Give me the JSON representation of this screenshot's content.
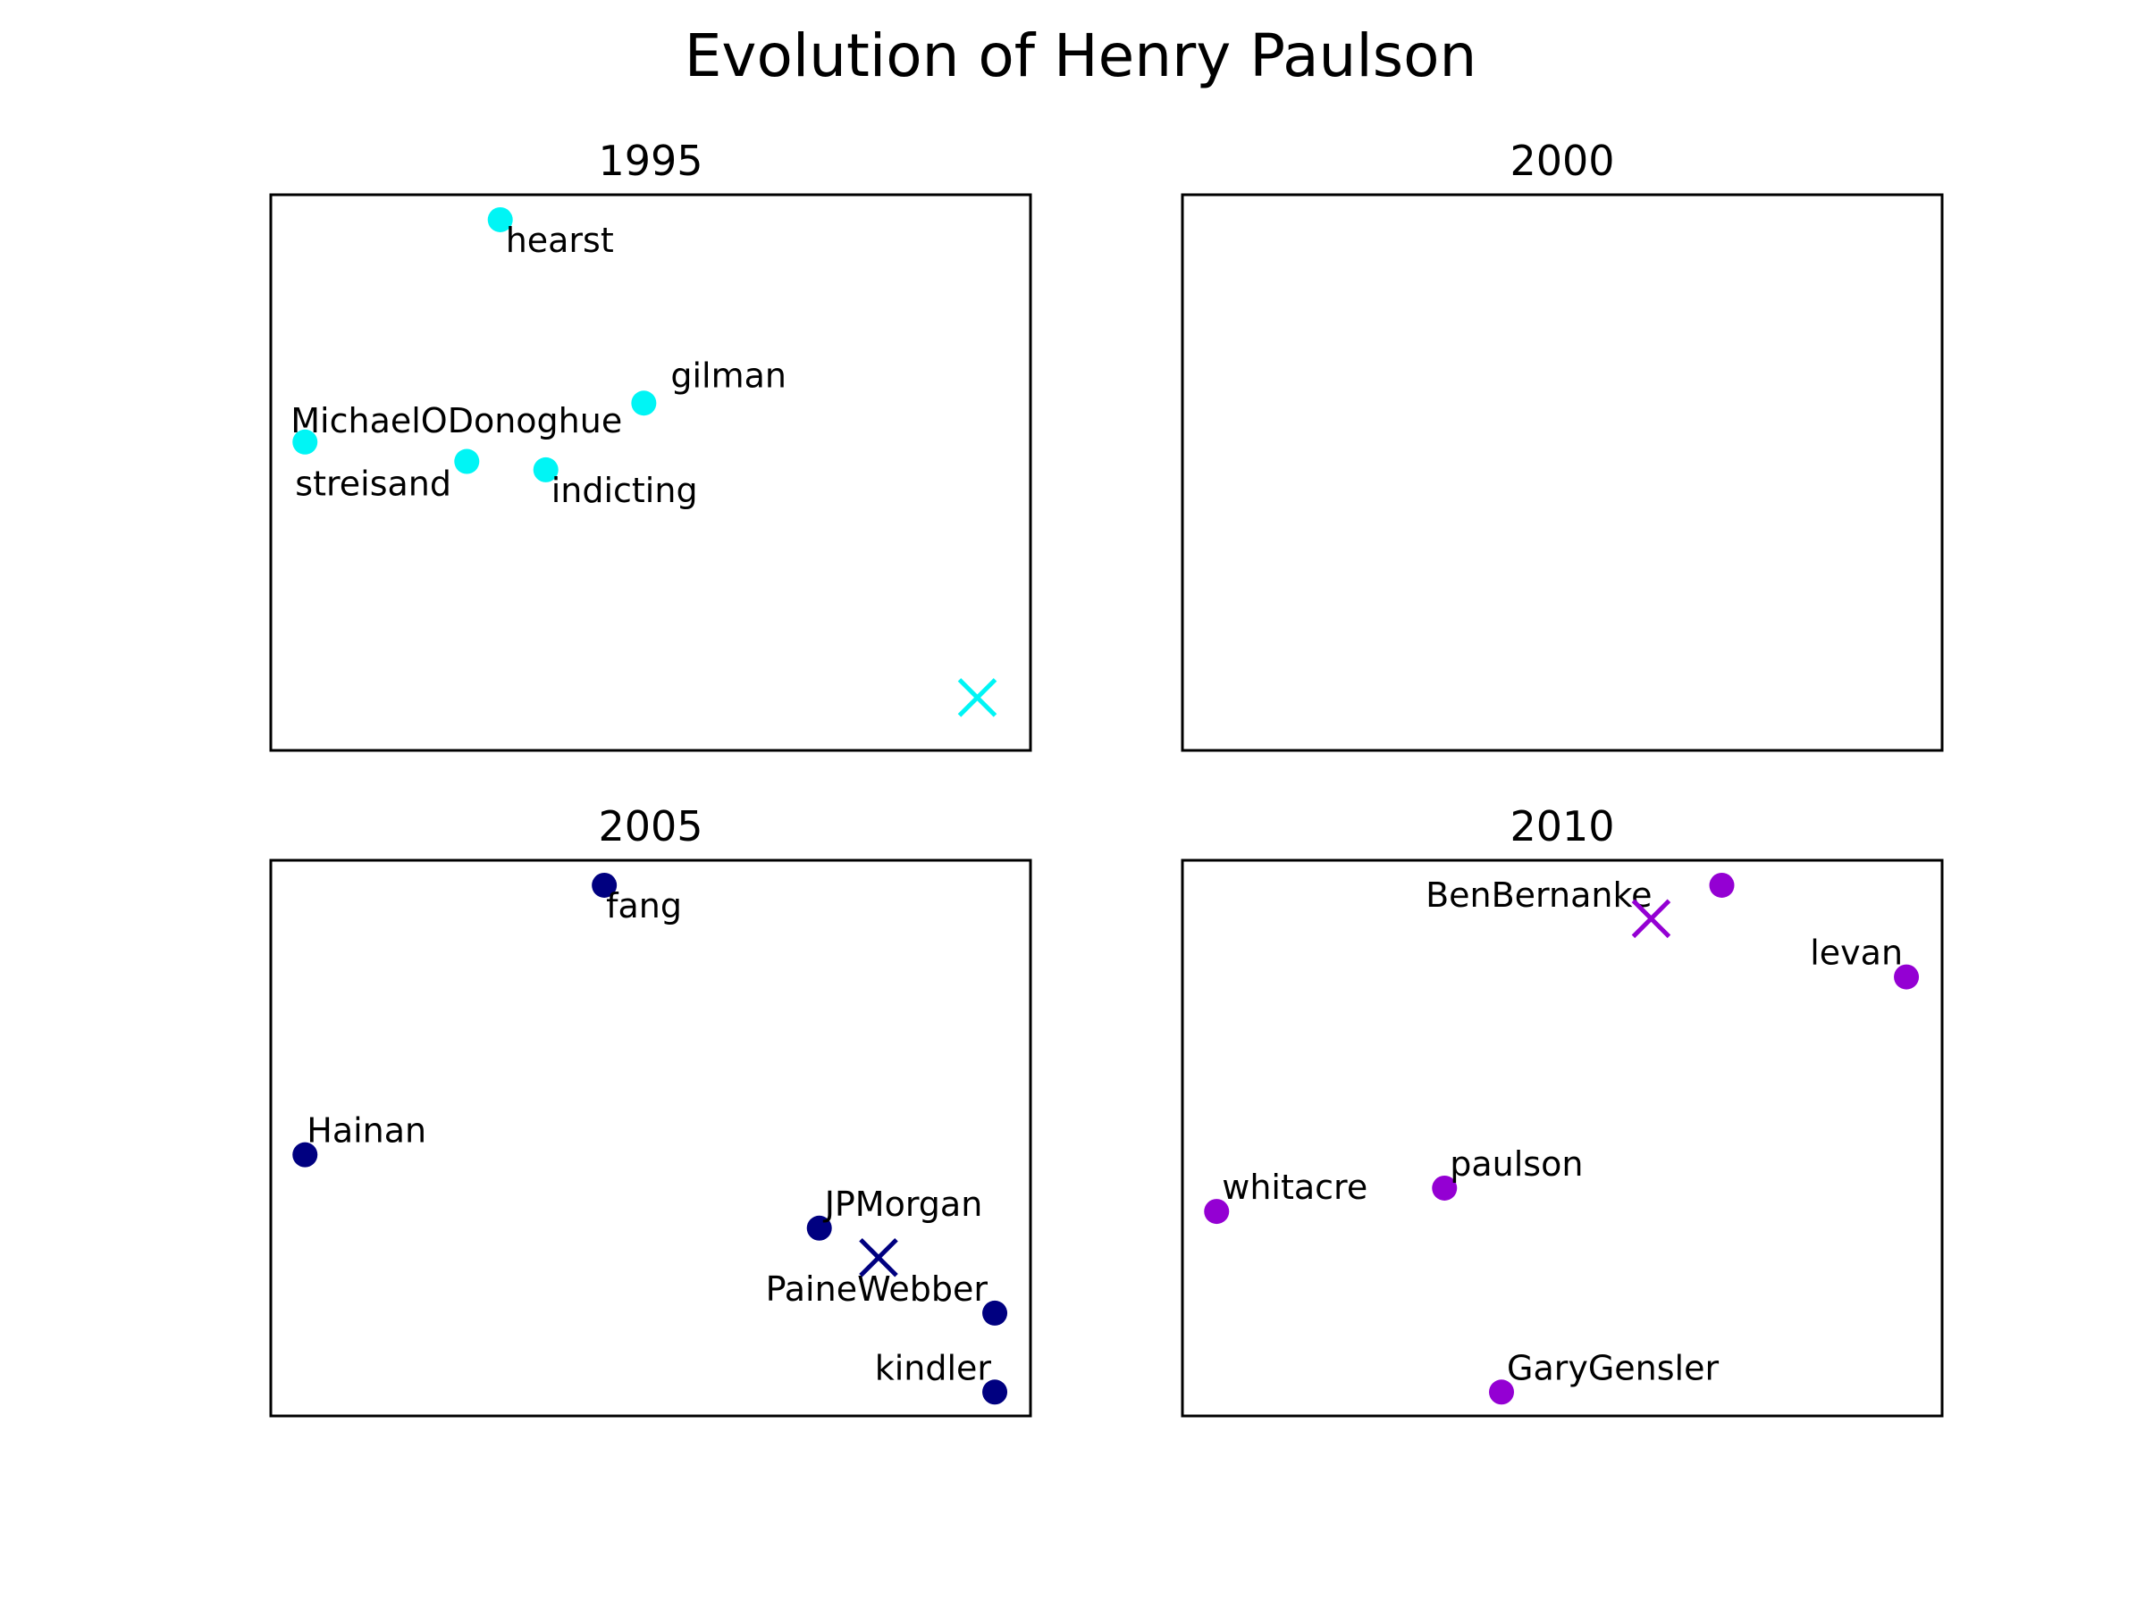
{
  "title": "Evolution of Henry Paulson",
  "chart_data": [
    {
      "type": "scatter",
      "title": "1995",
      "color": "#00f5f5",
      "xlim": [
        0,
        10
      ],
      "ylim": [
        0,
        10
      ],
      "points": [
        {
          "label": "hearst",
          "x": 3.02,
          "y": 9.55
        },
        {
          "label": "gilman",
          "x": 4.91,
          "y": 6.25
        },
        {
          "label": "MichaelODonoghue",
          "x": 0.45,
          "y": 5.55
        },
        {
          "label": "streisand",
          "x": 2.58,
          "y": 5.2
        },
        {
          "label": "indicting",
          "x": 3.62,
          "y": 5.05
        }
      ],
      "marker": {
        "label": "",
        "x": 9.3,
        "y": 0.95
      }
    },
    {
      "type": "scatter",
      "title": "2000",
      "color": "#000000",
      "xlim": [
        0,
        10
      ],
      "ylim": [
        0,
        10
      ],
      "points": [],
      "marker": null
    },
    {
      "type": "scatter",
      "title": "2005",
      "color": "#000080",
      "xlim": [
        0,
        10
      ],
      "ylim": [
        0,
        10
      ],
      "points": [
        {
          "label": "fang",
          "x": 4.39,
          "y": 9.55
        },
        {
          "label": "Hainan",
          "x": 0.45,
          "y": 4.7
        },
        {
          "label": "JPMorgan",
          "x": 7.22,
          "y": 3.38
        },
        {
          "label": "PaineWebber",
          "x": 9.53,
          "y": 1.85
        },
        {
          "label": "kindler",
          "x": 9.53,
          "y": 0.43
        }
      ],
      "marker": {
        "label": "",
        "x": 8.0,
        "y": 2.85
      }
    },
    {
      "type": "scatter",
      "title": "2010",
      "color": "#9400d3",
      "xlim": [
        0,
        10
      ],
      "ylim": [
        0,
        10
      ],
      "points": [
        {
          "label": "BenBernanke",
          "x": 7.1,
          "y": 9.55
        },
        {
          "label": "levan",
          "x": 9.53,
          "y": 7.9
        },
        {
          "label": "paulson",
          "x": 3.45,
          "y": 4.1
        },
        {
          "label": "whitacre",
          "x": 0.45,
          "y": 3.68
        },
        {
          "label": "GaryGensler",
          "x": 4.2,
          "y": 0.43
        }
      ],
      "marker": {
        "label": "",
        "x": 6.17,
        "y": 8.95
      }
    }
  ]
}
